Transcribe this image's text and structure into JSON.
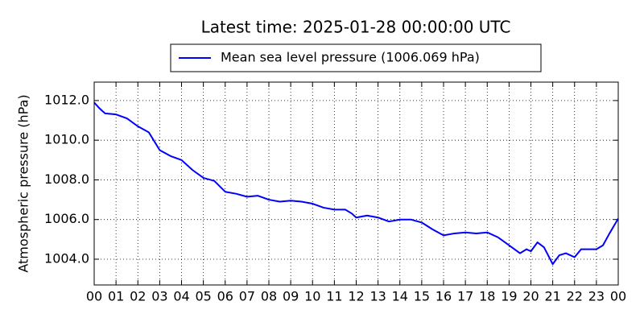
{
  "chart_data": {
    "type": "line",
    "title": "Latest time: 2025-01-28 00:00:00 UTC",
    "y_label": "Atmospheric pressure (hPa)",
    "grid": true,
    "legend_position": "top",
    "series": [
      {
        "name": "Mean sea level pressure (1006.069 hPa)",
        "color": "#0000ff",
        "x": [
          0,
          0.25,
          0.5,
          1,
          1.5,
          2,
          2.5,
          3,
          3.5,
          4,
          4.5,
          5,
          5.5,
          6,
          6.5,
          7,
          7.5,
          8,
          8.5,
          9,
          9.5,
          10,
          10.5,
          11,
          11.5,
          11.8,
          12,
          12.5,
          13,
          13.5,
          14,
          14.5,
          15,
          15.5,
          16,
          16.5,
          17,
          17.5,
          18,
          18.5,
          19,
          19.5,
          19.8,
          20,
          20.3,
          20.6,
          21,
          21.3,
          21.6,
          22,
          22.3,
          22.6,
          23,
          23.3,
          23.6,
          24
        ],
        "values": [
          1011.9,
          1011.6,
          1011.35,
          1011.3,
          1011.1,
          1010.7,
          1010.4,
          1009.5,
          1009.2,
          1009.0,
          1008.5,
          1008.1,
          1007.95,
          1007.4,
          1007.3,
          1007.15,
          1007.2,
          1007.0,
          1006.9,
          1006.95,
          1006.9,
          1006.8,
          1006.6,
          1006.5,
          1006.5,
          1006.3,
          1006.1,
          1006.2,
          1006.1,
          1005.9,
          1006.0,
          1006.0,
          1005.85,
          1005.5,
          1005.2,
          1005.3,
          1005.35,
          1005.3,
          1005.35,
          1005.1,
          1004.7,
          1004.3,
          1004.5,
          1004.4,
          1004.85,
          1004.6,
          1003.75,
          1004.2,
          1004.3,
          1004.1,
          1004.5,
          1004.5,
          1004.5,
          1004.7,
          1005.3,
          1006.05
        ]
      }
    ],
    "xlim": [
      0,
      24
    ],
    "xticks": [
      {
        "value": 0,
        "label": "00"
      },
      {
        "value": 1,
        "label": "01"
      },
      {
        "value": 2,
        "label": "02"
      },
      {
        "value": 3,
        "label": "03"
      },
      {
        "value": 4,
        "label": "04"
      },
      {
        "value": 5,
        "label": "05"
      },
      {
        "value": 6,
        "label": "06"
      },
      {
        "value": 7,
        "label": "07"
      },
      {
        "value": 8,
        "label": "08"
      },
      {
        "value": 9,
        "label": "09"
      },
      {
        "value": 10,
        "label": "10"
      },
      {
        "value": 11,
        "label": "11"
      },
      {
        "value": 12,
        "label": "12"
      },
      {
        "value": 13,
        "label": "13"
      },
      {
        "value": 14,
        "label": "14"
      },
      {
        "value": 15,
        "label": "15"
      },
      {
        "value": 16,
        "label": "16"
      },
      {
        "value": 17,
        "label": "17"
      },
      {
        "value": 18,
        "label": "18"
      },
      {
        "value": 19,
        "label": "19"
      },
      {
        "value": 20,
        "label": "20"
      },
      {
        "value": 21,
        "label": "21"
      },
      {
        "value": 22,
        "label": "22"
      },
      {
        "value": 23,
        "label": "23"
      },
      {
        "value": 24,
        "label": "00"
      }
    ],
    "ylim": [
      1002.7,
      1012.93
    ],
    "yticks": [
      {
        "value": 1004,
        "label": "1004.0"
      },
      {
        "value": 1006,
        "label": "1006.0"
      },
      {
        "value": 1008,
        "label": "1008.0"
      },
      {
        "value": 1010,
        "label": "1010.0"
      },
      {
        "value": 1012,
        "label": "1012.0"
      }
    ]
  }
}
